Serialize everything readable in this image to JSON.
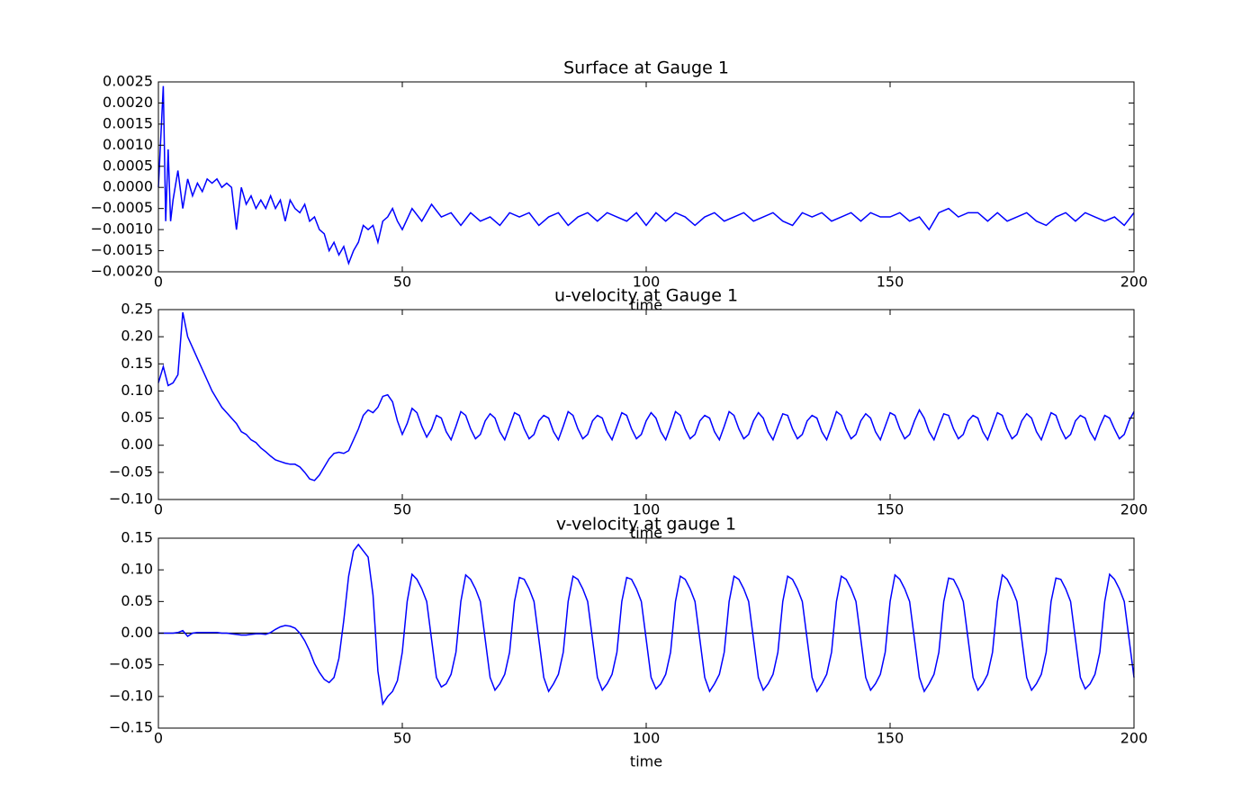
{
  "chart_data": [
    {
      "type": "line",
      "title": "Surface at Gauge 1",
      "xlabel": "time",
      "color": "#0000ff",
      "xlim": [
        0,
        200
      ],
      "xticks": [
        0,
        50,
        100,
        150,
        200
      ],
      "ylim": [
        -0.002,
        0.0025
      ],
      "yticks": [
        {
          "value": -0.002,
          "label": "−0.0020"
        },
        {
          "value": -0.0015,
          "label": "−0.0015"
        },
        {
          "value": -0.001,
          "label": "−0.0010"
        },
        {
          "value": -0.0005,
          "label": "−0.0005"
        },
        {
          "value": 0,
          "label": "0.0000"
        },
        {
          "value": 0.0005,
          "label": "0.0005"
        },
        {
          "value": 0.001,
          "label": "0.0010"
        },
        {
          "value": 0.0015,
          "label": "0.0015"
        },
        {
          "value": 0.002,
          "label": "0.0020"
        },
        {
          "value": 0.0025,
          "label": "0.0025"
        }
      ],
      "x": [
        0,
        1,
        1.5,
        2,
        2.5,
        3,
        4,
        5,
        6,
        7,
        8,
        9,
        10,
        11,
        12,
        13,
        14,
        15,
        16,
        17,
        18,
        19,
        20,
        21,
        22,
        23,
        24,
        25,
        26,
        27,
        28,
        29,
        30,
        31,
        32,
        33,
        34,
        35,
        36,
        37,
        38,
        39,
        40,
        41,
        42,
        43,
        44,
        45,
        46,
        47,
        48,
        49,
        50,
        52,
        54,
        56,
        58,
        60,
        62,
        64,
        66,
        68,
        70,
        72,
        74,
        76,
        78,
        80,
        82,
        84,
        86,
        88,
        90,
        92,
        94,
        96,
        98,
        100,
        102,
        104,
        106,
        108,
        110,
        112,
        114,
        116,
        118,
        120,
        122,
        124,
        126,
        128,
        130,
        132,
        134,
        136,
        138,
        140,
        142,
        144,
        146,
        148,
        150,
        152,
        154,
        156,
        158,
        160,
        162,
        164,
        166,
        168,
        170,
        172,
        174,
        176,
        178,
        180,
        182,
        184,
        186,
        188,
        190,
        192,
        194,
        196,
        198,
        200
      ],
      "values": [
        0,
        0.0024,
        -0.0008,
        0.0009,
        -0.0008,
        -0.0003,
        0.0004,
        -0.0005,
        0.0002,
        -0.0002,
        0.0001,
        -0.0001,
        0.0002,
        0.0001,
        0.0002,
        0,
        0.0001,
        0,
        -0.001,
        0,
        -0.0004,
        -0.0002,
        -0.0005,
        -0.0003,
        -0.0005,
        -0.0002,
        -0.0005,
        -0.0003,
        -0.0008,
        -0.0003,
        -0.0005,
        -0.0006,
        -0.0004,
        -0.0008,
        -0.0007,
        -0.001,
        -0.0011,
        -0.0015,
        -0.0013,
        -0.0016,
        -0.0014,
        -0.0018,
        -0.0015,
        -0.0013,
        -0.0009,
        -0.001,
        -0.0009,
        -0.0013,
        -0.0008,
        -0.0007,
        -0.0005,
        -0.0008,
        -0.001,
        -0.0005,
        -0.0008,
        -0.0004,
        -0.0007,
        -0.0006,
        -0.0009,
        -0.0006,
        -0.0008,
        -0.0007,
        -0.0009,
        -0.0006,
        -0.0007,
        -0.0006,
        -0.0009,
        -0.0007,
        -0.0006,
        -0.0009,
        -0.0007,
        -0.0006,
        -0.0008,
        -0.0006,
        -0.0007,
        -0.0008,
        -0.0006,
        -0.0009,
        -0.0006,
        -0.0008,
        -0.0006,
        -0.0007,
        -0.0009,
        -0.0007,
        -0.0006,
        -0.0008,
        -0.0007,
        -0.0006,
        -0.0008,
        -0.0007,
        -0.0006,
        -0.0008,
        -0.0009,
        -0.0006,
        -0.0007,
        -0.0006,
        -0.0008,
        -0.0007,
        -0.0006,
        -0.0008,
        -0.0006,
        -0.0007,
        -0.0007,
        -0.0006,
        -0.0008,
        -0.0007,
        -0.001,
        -0.0006,
        -0.0005,
        -0.0007,
        -0.0006,
        -0.0006,
        -0.0008,
        -0.0006,
        -0.0008,
        -0.0007,
        -0.0006,
        -0.0008,
        -0.0009,
        -0.0007,
        -0.0006,
        -0.0008,
        -0.0006,
        -0.0007,
        -0.0008,
        -0.0007,
        -0.0009,
        -0.0006
      ]
    },
    {
      "type": "line",
      "title": "u-velocity at Gauge 1",
      "xlabel": "time",
      "color": "#0000ff",
      "xlim": [
        0,
        200
      ],
      "xticks": [
        0,
        50,
        100,
        150,
        200
      ],
      "ylim": [
        -0.1,
        0.25
      ],
      "yticks": [
        {
          "value": -0.1,
          "label": "−0.10"
        },
        {
          "value": -0.05,
          "label": "−0.05"
        },
        {
          "value": 0,
          "label": "0.00"
        },
        {
          "value": 0.05,
          "label": "0.05"
        },
        {
          "value": 0.1,
          "label": "0.10"
        },
        {
          "value": 0.15,
          "label": "0.15"
        },
        {
          "value": 0.2,
          "label": "0.20"
        },
        {
          "value": 0.25,
          "label": "0.25"
        }
      ],
      "x": [
        0,
        1,
        2,
        3,
        4,
        5,
        6,
        7,
        8,
        9,
        10,
        11,
        12,
        13,
        14,
        15,
        16,
        17,
        18,
        19,
        20,
        21,
        22,
        23,
        24,
        25,
        26,
        27,
        28,
        29,
        30,
        31,
        32,
        33,
        34,
        35,
        36,
        37,
        38,
        39,
        40,
        41,
        42,
        43,
        44,
        45,
        46,
        47,
        48,
        49,
        50,
        51,
        52,
        53,
        54,
        55,
        56,
        57,
        58,
        59,
        60,
        61,
        62,
        63,
        64,
        65,
        66,
        67,
        68,
        69,
        70,
        71,
        72,
        73,
        74,
        75,
        76,
        77,
        78,
        79,
        80,
        81,
        82,
        83,
        84,
        85,
        86,
        87,
        88,
        89,
        90,
        91,
        92,
        93,
        94,
        95,
        96,
        97,
        98,
        99,
        100,
        101,
        102,
        103,
        104,
        105,
        106,
        107,
        108,
        109,
        110,
        111,
        112,
        113,
        114,
        115,
        116,
        117,
        118,
        119,
        120,
        121,
        122,
        123,
        124,
        125,
        126,
        127,
        128,
        129,
        130,
        131,
        132,
        133,
        134,
        135,
        136,
        137,
        138,
        139,
        140,
        141,
        142,
        143,
        144,
        145,
        146,
        147,
        148,
        149,
        150,
        151,
        152,
        153,
        154,
        155,
        156,
        157,
        158,
        159,
        160,
        161,
        162,
        163,
        164,
        165,
        166,
        167,
        168,
        169,
        170,
        171,
        172,
        173,
        174,
        175,
        176,
        177,
        178,
        179,
        180,
        181,
        182,
        183,
        184,
        185,
        186,
        187,
        188,
        189,
        190,
        191,
        192,
        193,
        194,
        195,
        196,
        197,
        198,
        199,
        200
      ],
      "values": [
        0.115,
        0.145,
        0.11,
        0.115,
        0.13,
        0.245,
        0.2,
        0.18,
        0.16,
        0.14,
        0.12,
        0.1,
        0.085,
        0.07,
        0.06,
        0.05,
        0.04,
        0.025,
        0.02,
        0.01,
        0.005,
        -0.005,
        -0.012,
        -0.02,
        -0.027,
        -0.03,
        -0.033,
        -0.035,
        -0.035,
        -0.04,
        -0.05,
        -0.062,
        -0.065,
        -0.055,
        -0.04,
        -0.025,
        -0.015,
        -0.013,
        -0.015,
        -0.01,
        0.01,
        0.03,
        0.055,
        0.065,
        0.06,
        0.07,
        0.09,
        0.093,
        0.08,
        0.045,
        0.02,
        0.04,
        0.068,
        0.06,
        0.035,
        0.015,
        0.03,
        0.055,
        0.05,
        0.025,
        0.01,
        0.035,
        0.062,
        0.055,
        0.03,
        0.012,
        0.02,
        0.045,
        0.058,
        0.05,
        0.025,
        0.01,
        0.035,
        0.06,
        0.055,
        0.03,
        0.012,
        0.02,
        0.045,
        0.055,
        0.05,
        0.025,
        0.01,
        0.035,
        0.062,
        0.055,
        0.03,
        0.012,
        0.02,
        0.045,
        0.055,
        0.05,
        0.025,
        0.01,
        0.035,
        0.06,
        0.055,
        0.03,
        0.012,
        0.02,
        0.045,
        0.06,
        0.05,
        0.025,
        0.01,
        0.035,
        0.062,
        0.055,
        0.03,
        0.012,
        0.02,
        0.045,
        0.055,
        0.05,
        0.025,
        0.01,
        0.035,
        0.062,
        0.055,
        0.03,
        0.012,
        0.02,
        0.045,
        0.06,
        0.05,
        0.025,
        0.01,
        0.035,
        0.058,
        0.055,
        0.03,
        0.012,
        0.02,
        0.045,
        0.055,
        0.05,
        0.025,
        0.01,
        0.035,
        0.062,
        0.055,
        0.03,
        0.012,
        0.02,
        0.045,
        0.058,
        0.05,
        0.025,
        0.01,
        0.035,
        0.06,
        0.055,
        0.03,
        0.012,
        0.02,
        0.045,
        0.065,
        0.05,
        0.025,
        0.01,
        0.035,
        0.058,
        0.055,
        0.03,
        0.012,
        0.02,
        0.045,
        0.055,
        0.05,
        0.025,
        0.01,
        0.035,
        0.06,
        0.055,
        0.03,
        0.012,
        0.02,
        0.045,
        0.058,
        0.05,
        0.025,
        0.01,
        0.035,
        0.06,
        0.055,
        0.03,
        0.012,
        0.02,
        0.045,
        0.055,
        0.05,
        0.025,
        0.01,
        0.035,
        0.055,
        0.05,
        0.03,
        0.012,
        0.02,
        0.045,
        0.062
      ]
    },
    {
      "type": "line",
      "title": "v-velocity at gauge 1",
      "xlabel": "time",
      "color": "#0000ff",
      "hline": 0,
      "hline_color": "#000000",
      "xlim": [
        0,
        200
      ],
      "xticks": [
        0,
        50,
        100,
        150,
        200
      ],
      "ylim": [
        -0.15,
        0.15
      ],
      "yticks": [
        {
          "value": -0.15,
          "label": "−0.15"
        },
        {
          "value": -0.1,
          "label": "−0.10"
        },
        {
          "value": -0.05,
          "label": "−0.05"
        },
        {
          "value": 0,
          "label": "0.00"
        },
        {
          "value": 0.05,
          "label": "0.05"
        },
        {
          "value": 0.1,
          "label": "0.10"
        },
        {
          "value": 0.15,
          "label": "0.15"
        }
      ],
      "x": [
        0,
        1,
        2,
        3,
        4,
        5,
        6,
        7,
        8,
        9,
        10,
        11,
        12,
        13,
        14,
        15,
        16,
        17,
        18,
        19,
        20,
        21,
        22,
        23,
        24,
        25,
        26,
        27,
        28,
        29,
        30,
        31,
        32,
        33,
        34,
        35,
        36,
        37,
        38,
        39,
        40,
        41,
        42,
        43,
        44,
        45,
        46,
        47,
        48,
        49,
        50,
        51,
        52,
        53,
        54,
        55,
        56,
        57,
        58,
        59,
        60,
        61,
        62,
        63,
        64,
        65,
        66,
        67,
        68,
        69,
        70,
        71,
        72,
        73,
        74,
        75,
        76,
        77,
        78,
        79,
        80,
        81,
        82,
        83,
        84,
        85,
        86,
        87,
        88,
        89,
        90,
        91,
        92,
        93,
        94,
        95,
        96,
        97,
        98,
        99,
        100,
        101,
        102,
        103,
        104,
        105,
        106,
        107,
        108,
        109,
        110,
        111,
        112,
        113,
        114,
        115,
        116,
        117,
        118,
        119,
        120,
        121,
        122,
        123,
        124,
        125,
        126,
        127,
        128,
        129,
        130,
        131,
        132,
        133,
        134,
        135,
        136,
        137,
        138,
        139,
        140,
        141,
        142,
        143,
        144,
        145,
        146,
        147,
        148,
        149,
        150,
        151,
        152,
        153,
        154,
        155,
        156,
        157,
        158,
        159,
        160,
        161,
        162,
        163,
        164,
        165,
        166,
        167,
        168,
        169,
        170,
        171,
        172,
        173,
        174,
        175,
        176,
        177,
        178,
        179,
        180,
        181,
        182,
        183,
        184,
        185,
        186,
        187,
        188,
        189,
        190,
        191,
        192,
        193,
        194,
        195,
        196,
        197,
        198,
        199,
        200
      ],
      "values": [
        0,
        0,
        0,
        0,
        0.001,
        0.004,
        -0.005,
        0,
        0.001,
        0.001,
        0.001,
        0.001,
        0.001,
        0,
        0,
        -0.001,
        -0.002,
        -0.003,
        -0.003,
        -0.002,
        -0.001,
        -0.001,
        -0.002,
        0.001,
        0.006,
        0.01,
        0.012,
        0.011,
        0.008,
        0,
        -0.012,
        -0.028,
        -0.048,
        -0.062,
        -0.073,
        -0.078,
        -0.07,
        -0.04,
        0.02,
        0.09,
        0.13,
        0.14,
        0.13,
        0.12,
        0.06,
        -0.06,
        -0.112,
        -0.1,
        -0.092,
        -0.075,
        -0.03,
        0.05,
        0.093,
        0.085,
        0.07,
        0.05,
        -0.01,
        -0.07,
        -0.085,
        -0.08,
        -0.065,
        -0.03,
        0.05,
        0.092,
        0.085,
        0.07,
        0.05,
        -0.01,
        -0.07,
        -0.09,
        -0.08,
        -0.065,
        -0.03,
        0.05,
        0.088,
        0.085,
        0.07,
        0.05,
        -0.01,
        -0.07,
        -0.092,
        -0.08,
        -0.065,
        -0.03,
        0.05,
        0.09,
        0.085,
        0.07,
        0.05,
        -0.01,
        -0.07,
        -0.09,
        -0.08,
        -0.065,
        -0.03,
        0.05,
        0.088,
        0.085,
        0.07,
        0.05,
        -0.01,
        -0.07,
        -0.088,
        -0.08,
        -0.065,
        -0.03,
        0.05,
        0.09,
        0.085,
        0.07,
        0.05,
        -0.01,
        -0.07,
        -0.092,
        -0.08,
        -0.065,
        -0.03,
        0.05,
        0.09,
        0.085,
        0.07,
        0.05,
        -0.01,
        -0.07,
        -0.09,
        -0.08,
        -0.065,
        -0.03,
        0.05,
        0.09,
        0.085,
        0.07,
        0.05,
        -0.01,
        -0.07,
        -0.092,
        -0.08,
        -0.065,
        -0.03,
        0.05,
        0.09,
        0.085,
        0.07,
        0.05,
        -0.01,
        -0.07,
        -0.09,
        -0.08,
        -0.065,
        -0.03,
        0.05,
        0.092,
        0.085,
        0.07,
        0.05,
        -0.01,
        -0.07,
        -0.092,
        -0.08,
        -0.065,
        -0.03,
        0.05,
        0.087,
        0.085,
        0.07,
        0.05,
        -0.01,
        -0.07,
        -0.09,
        -0.08,
        -0.065,
        -0.03,
        0.05,
        0.092,
        0.085,
        0.07,
        0.05,
        -0.01,
        -0.07,
        -0.09,
        -0.08,
        -0.065,
        -0.03,
        0.05,
        0.087,
        0.085,
        0.07,
        0.05,
        -0.01,
        -0.07,
        -0.088,
        -0.08,
        -0.065,
        -0.03,
        0.05,
        0.093,
        0.085,
        0.07,
        0.05,
        -0.01,
        -0.07
      ]
    }
  ]
}
